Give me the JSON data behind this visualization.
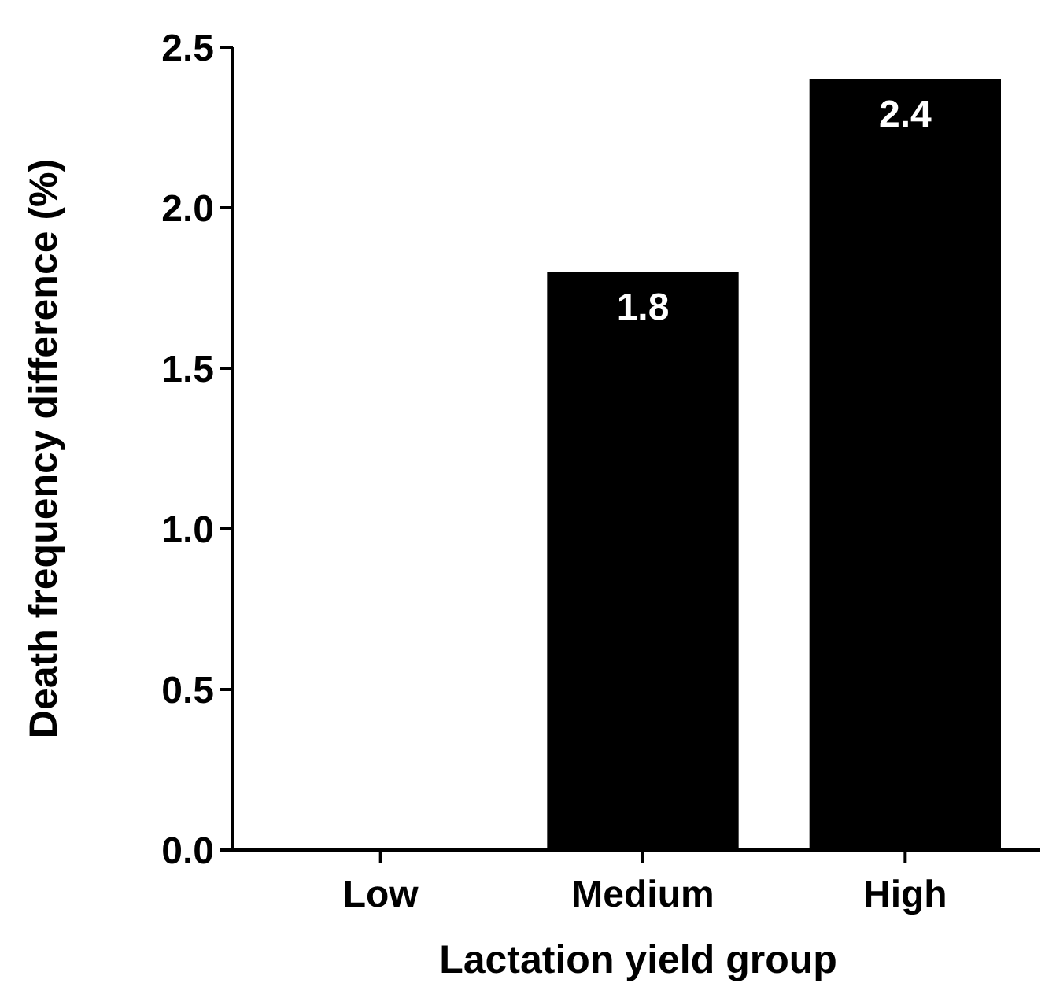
{
  "chart_data": {
    "type": "bar",
    "xlabel": "Lactation yield group",
    "ylabel": "Death frequency difference (%)",
    "categories": [
      "Low",
      "Medium",
      "High"
    ],
    "values": [
      0,
      1.8,
      2.4
    ],
    "value_labels": [
      null,
      "1.8",
      "2.4"
    ],
    "color": "#000000",
    "ylim": [
      0,
      2.5
    ],
    "yticks": [
      {
        "value": 0,
        "label": "0.0"
      },
      {
        "value": 0.5,
        "label": "0.5"
      },
      {
        "value": 1,
        "label": "1.0"
      },
      {
        "value": 1.5,
        "label": "1.5"
      },
      {
        "value": 2,
        "label": "2.0"
      },
      {
        "value": 2.5,
        "label": "2.5"
      }
    ],
    "grid": false
  }
}
